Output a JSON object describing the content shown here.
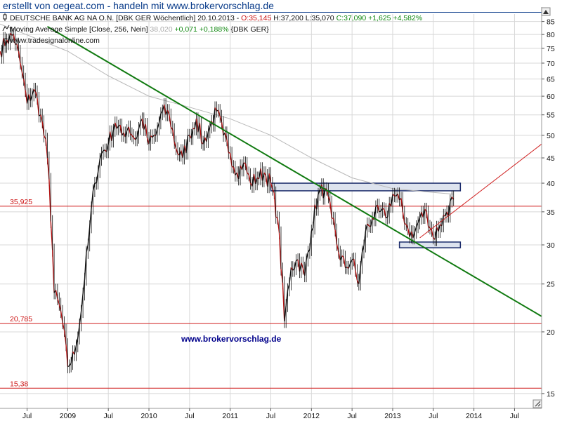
{
  "page_title": "erstellt von oegeat.com - handeln mit www.brokervorschlag.de",
  "header": {
    "line1_name": "DEUTSCHE BANK AG NA O.N. [DBK GER  Wöchentlich] 20.10.2013 - ",
    "line1_open": "O:35,145",
    "line1_hl": " H:37,200 L:35,070 ",
    "line1_close": "C:37,090 +1,625 +4,582%",
    "line2_name": "Moving Average Simple [Close, 256, Nein] ",
    "line2_value": "38,020",
    "line2_change": " +0,071 +0,188%",
    "line2_tail": " {DBK GER}",
    "copyright": "© www.tradesignalonline.com"
  },
  "watermark": "www.brokervorschlag.de",
  "colors": {
    "price": "#111111",
    "price_down": "#b01010",
    "moving_average": "#b8b8b8",
    "trendline": "#107a10",
    "horizontal": "#d02020",
    "box_fill": "#dde3ee",
    "box_border": "#1a2a6a",
    "grid": "#d8d8d8"
  },
  "chart_data": {
    "type": "line",
    "title": "DEUTSCHE BANK AG NA O.N. [DBK GER Wöchentlich]",
    "y_scale": "log",
    "ylim": [
      14,
      88
    ],
    "y_ticks": [
      15,
      20,
      25,
      30,
      35,
      40,
      45,
      50,
      55,
      60,
      65,
      70,
      75,
      80,
      85
    ],
    "x_tick_labels": [
      "Jul",
      "2009",
      "Jul",
      "2010",
      "Jul",
      "2011",
      "Jul",
      "2012",
      "Jul",
      "2013",
      "Jul",
      "2014",
      "Jul"
    ],
    "xlim": [
      "2008-03",
      "2014-11"
    ],
    "series": [
      {
        "name": "DEUTSCHE BANK AG NA O.N.",
        "x": [
          "2008-03",
          "2008-04",
          "2008-05",
          "2008-06",
          "2008-07",
          "2008-08",
          "2008-09",
          "2008-10",
          "2008-11",
          "2008-12",
          "2009-01",
          "2009-02",
          "2009-03",
          "2009-04",
          "2009-05",
          "2009-06",
          "2009-07",
          "2009-08",
          "2009-09",
          "2009-10",
          "2009-11",
          "2009-12",
          "2010-01",
          "2010-02",
          "2010-03",
          "2010-04",
          "2010-05",
          "2010-06",
          "2010-07",
          "2010-08",
          "2010-09",
          "2010-10",
          "2010-11",
          "2010-12",
          "2011-01",
          "2011-02",
          "2011-03",
          "2011-04",
          "2011-05",
          "2011-06",
          "2011-07",
          "2011-08",
          "2011-09",
          "2011-10",
          "2011-11",
          "2011-12",
          "2012-01",
          "2012-02",
          "2012-03",
          "2012-04",
          "2012-05",
          "2012-06",
          "2012-07",
          "2012-08",
          "2012-09",
          "2012-10",
          "2012-11",
          "2012-12",
          "2013-01",
          "2013-02",
          "2013-03",
          "2013-04",
          "2013-05",
          "2013-06",
          "2013-07",
          "2013-08",
          "2013-09",
          "2013-10"
        ],
        "values": [
          74,
          78,
          80,
          70,
          58,
          62,
          55,
          45,
          24,
          22,
          17,
          18,
          22,
          30,
          40,
          46,
          48,
          53,
          50,
          52,
          49,
          54,
          48,
          50,
          56,
          55,
          47,
          45,
          50,
          54,
          48,
          52,
          56,
          50,
          46,
          42,
          44,
          40,
          41,
          42,
          40,
          34,
          21,
          27,
          28,
          26,
          32,
          38,
          39,
          34,
          29,
          27,
          28,
          25,
          32,
          34,
          35,
          34,
          38,
          37,
          33,
          31,
          34,
          35,
          31,
          33,
          35,
          37.09
        ]
      },
      {
        "name": "Moving Average Simple [Close, 256, Nein]",
        "x": [
          "2008-03",
          "2009-01",
          "2009-07",
          "2010-01",
          "2010-07",
          "2011-01",
          "2011-07",
          "2012-01",
          "2012-07",
          "2013-01",
          "2013-07",
          "2013-10"
        ],
        "values": [
          84,
          74,
          66,
          60,
          57,
          54,
          50,
          45,
          41,
          39,
          38.3,
          38.02
        ]
      }
    ],
    "trendline": {
      "x": [
        "2008-10",
        "2014-11"
      ],
      "values": [
        83,
        21.5
      ]
    },
    "support_line": {
      "x": [
        "2013-05",
        "2014-11"
      ],
      "values": [
        31,
        48
      ]
    },
    "horizontal_levels": [
      {
        "label": "35,925",
        "value": 35.925
      },
      {
        "label": "20,785",
        "value": 20.785
      },
      {
        "label": "15,38",
        "value": 15.38
      }
    ],
    "boxes": [
      {
        "x": [
          "2011-07",
          "2013-11"
        ],
        "values": [
          38.6,
          40.0
        ]
      },
      {
        "x": [
          "2013-02",
          "2013-11"
        ],
        "values": [
          29.6,
          30.4
        ]
      }
    ]
  }
}
